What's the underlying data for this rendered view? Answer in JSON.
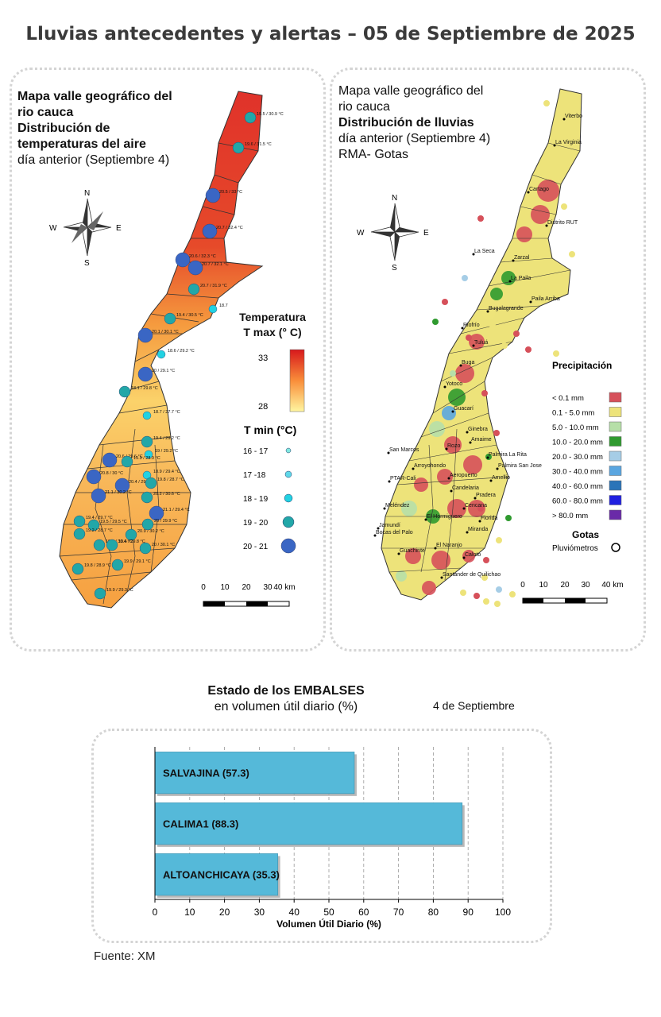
{
  "page_title": "Lluvias antecedentes y alertas – 05 de Septiembre de 2025",
  "temp_map": {
    "title_line1": "Mapa valle geográfico del",
    "title_line2": "rio cauca",
    "title_bold1": "Distribución de",
    "title_bold2": "temperaturas del aire",
    "subtitle": "día anterior (Septiembre 4)",
    "compass": {
      "n": "N",
      "s": "S",
      "e": "E",
      "w": "W"
    },
    "legend_title1": "Temperatura",
    "legend_title2": "T max (° C)",
    "legend_max": "33",
    "legend_min": "28",
    "tmin_title": "T min (°C)",
    "tmin_classes": [
      "16 - 17",
      "17 -18",
      "18 - 19",
      "19 - 20",
      "20 - 21"
    ],
    "tmin_colors": [
      "#7fe8e0",
      "#5fd8e8",
      "#22d2e2",
      "#22a7a8",
      "#3a66c4"
    ],
    "scale_labels": [
      "0",
      "10",
      "20",
      "30",
      "40 km"
    ],
    "station_labels": [
      "19.5 / 30.9 °C",
      "19.6 / 31.5 °C",
      "20.5 / 33 °C",
      "20.7 / 32.4 °C",
      "20.6 / 32.3 °C",
      "20.7 / 32.1 °C",
      "20.7 / 31.9 °C",
      "19.4 / 30.5 °C",
      "18.7",
      "20.1 / 30.1 °C",
      "18.6 / 29.2 °C",
      "20 / 29.1 °C",
      "18.1 / 29.8 °C",
      "18.7 / 27.7 °C",
      "19.4 / 29.2 °C",
      "19 / 29.2 °C",
      "20.6 / 29.6 °C",
      "19.3 / 28.9 °C",
      "18.9 / 29.4 °C",
      "20.8 / 30 °C",
      "20.4 / 29.5 °C",
      "19.8 / 28.7 °C",
      "20.2 / 30.6 °C",
      "21.1 / 30.2 °C",
      "21.1 / 29.4 °C",
      "19.4 / 29.7 °C",
      "19.5 / 29.5 °C",
      "19.2 / 28.7 °C",
      "20.9 / 30.2 °C",
      "20 / 29.9 °C",
      "19.1 / 30.4 °C",
      "19.6 / 29.8 °C",
      "20 / 30.1 °C",
      "19.8 / 28.9 °C",
      "19.9 / 29.1 °C",
      "19.9 / 29.3 °C"
    ]
  },
  "rain_map": {
    "title_line1": "Mapa valle geográfico del",
    "title_line2": "rio cauca",
    "title_bold": "Distribución de lluvias",
    "subtitle1": "día anterior (Septiembre 4)",
    "subtitle2": "RMA- Gotas",
    "compass": {
      "n": "N",
      "s": "S",
      "e": "E",
      "w": "W"
    },
    "legend_title": "Precipitación",
    "classes": [
      {
        "label": "< 0.1 mm",
        "color": "#d6505a"
      },
      {
        "label": "0.1 - 5.0 mm",
        "color": "#ede37a"
      },
      {
        "label": "5.0 - 10.0 mm",
        "color": "#b6dfa8"
      },
      {
        "label": "10.0 - 20.0 mm",
        "color": "#2f9a2f"
      },
      {
        "label": "20.0 - 30.0 mm",
        "color": "#a6cde6"
      },
      {
        "label": "30.0 - 40.0 mm",
        "color": "#5aa6e0"
      },
      {
        "label": "40.0 - 60.0 mm",
        "color": "#2a74b8"
      },
      {
        "label": "60.0 - 80.0 mm",
        "color": "#2020e0"
      },
      {
        "label": "> 80.0 mm",
        "color": "#6a2aa8"
      }
    ],
    "gotas_title": "Gotas",
    "gotas_item": "Pluviómetros",
    "municipalities": [
      "Viterbo",
      "La Virginia",
      "Cartago",
      "Distrito RUT",
      "La Seca",
      "Zarzal",
      "La Paila",
      "Paila Arriba",
      "Bugalagrande",
      "Riofrío",
      "Tuluá",
      "Buga",
      "Yotoco",
      "Guacarí",
      "Ginebra",
      "Amaime",
      "San Marcos",
      "Rozo",
      "Palmira La Rita",
      "Palmira San Jose",
      "Arroyohondo",
      "Aeropuerto",
      "Amellio",
      "PTAR-Cali",
      "Candelaria",
      "Pradera",
      "Meléndez",
      "Cencana",
      "El Hormiguero",
      "Florida",
      "Jamundí",
      "Bocas del Palo",
      "Miranda",
      "El Naranjo",
      "Guachinte",
      "Caloto",
      "Santander de Quilichao"
    ],
    "scale_labels": [
      "0",
      "10",
      "20",
      "30",
      "40 km"
    ]
  },
  "reservoirs": {
    "title_bold": "Estado de los EMBALSES",
    "title_normal": "en volumen útil diario (%)",
    "date": "4 de Septiembre",
    "source": "Fuente: XM"
  },
  "chart_data": {
    "type": "bar",
    "orientation": "horizontal",
    "categories": [
      "SALVAJINA",
      "CALIMA1",
      "ALTOANCHICAYA"
    ],
    "values": [
      57.3,
      88.3,
      35.3
    ],
    "data_labels": [
      "SALVAJINA (57.3)",
      "CALIMA1 (88.3)",
      "ALTOANCHICAYA (35.3)"
    ],
    "xlabel": "Volumen Útil Diario (%)",
    "ylabel": "",
    "xlim": [
      0,
      100
    ],
    "xticks": [
      0,
      10,
      20,
      30,
      40,
      50,
      60,
      70,
      80,
      90,
      100
    ],
    "grid": true,
    "bar_color": "#55b9d9"
  }
}
